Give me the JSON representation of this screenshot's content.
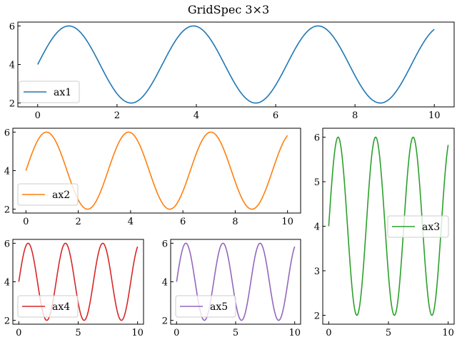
{
  "figure": {
    "title": "GridSpec 3×3",
    "background": "#ffffff"
  },
  "chart_data": [
    {
      "name": "ax1",
      "type": "line",
      "function": "4 + 2*sin(2*x)",
      "x_range": [
        0,
        10
      ],
      "xlim": [
        -0.5,
        10.5
      ],
      "ylim": [
        1.8,
        6.2
      ],
      "xticks": [
        0,
        2,
        4,
        6,
        8,
        10
      ],
      "yticks": [
        2,
        4,
        6
      ],
      "legend": "lower left",
      "series": [
        {
          "name": "ax1",
          "color": "#1f77b4",
          "freq": 2
        }
      ]
    },
    {
      "name": "ax2",
      "type": "line",
      "function": "4 + 2*sin(2*x)",
      "x_range": [
        0,
        10
      ],
      "xlim": [
        -0.5,
        10.5
      ],
      "ylim": [
        1.8,
        6.2
      ],
      "xticks": [
        0,
        2,
        4,
        6,
        8,
        10
      ],
      "yticks": [
        2,
        4,
        6
      ],
      "legend": "lower left",
      "series": [
        {
          "name": "ax2",
          "color": "#ff7f0e",
          "freq": 2
        }
      ]
    },
    {
      "name": "ax3",
      "type": "line",
      "function": "4 + 2*sin(2*x)",
      "x_range": [
        0,
        10
      ],
      "xlim": [
        -0.5,
        10.5
      ],
      "ylim": [
        1.8,
        6.2
      ],
      "xticks": [
        0,
        5,
        10
      ],
      "yticks": [
        2,
        3,
        4,
        5,
        6
      ],
      "legend": "center right",
      "series": [
        {
          "name": "ax3",
          "color": "#2ca02c",
          "freq": 2
        }
      ]
    },
    {
      "name": "ax4",
      "type": "line",
      "function": "4 + 2*sin(2*x)",
      "x_range": [
        0,
        10
      ],
      "xlim": [
        -0.5,
        10.5
      ],
      "ylim": [
        1.8,
        6.2
      ],
      "xticks": [
        0,
        5,
        10
      ],
      "yticks": [
        2,
        4,
        6
      ],
      "legend": "lower left",
      "series": [
        {
          "name": "ax4",
          "color": "#d62728",
          "freq": 2
        }
      ]
    },
    {
      "name": "ax5",
      "type": "line",
      "function": "4 + 2*sin(2*x)",
      "x_range": [
        0,
        10
      ],
      "xlim": [
        -0.5,
        10.5
      ],
      "ylim": [
        1.8,
        6.2
      ],
      "xticks": [
        0,
        5,
        10
      ],
      "yticks": [
        2,
        4,
        6
      ],
      "legend": "lower left",
      "series": [
        {
          "name": "ax5",
          "color": "#9467bd",
          "freq": 2
        }
      ]
    }
  ]
}
